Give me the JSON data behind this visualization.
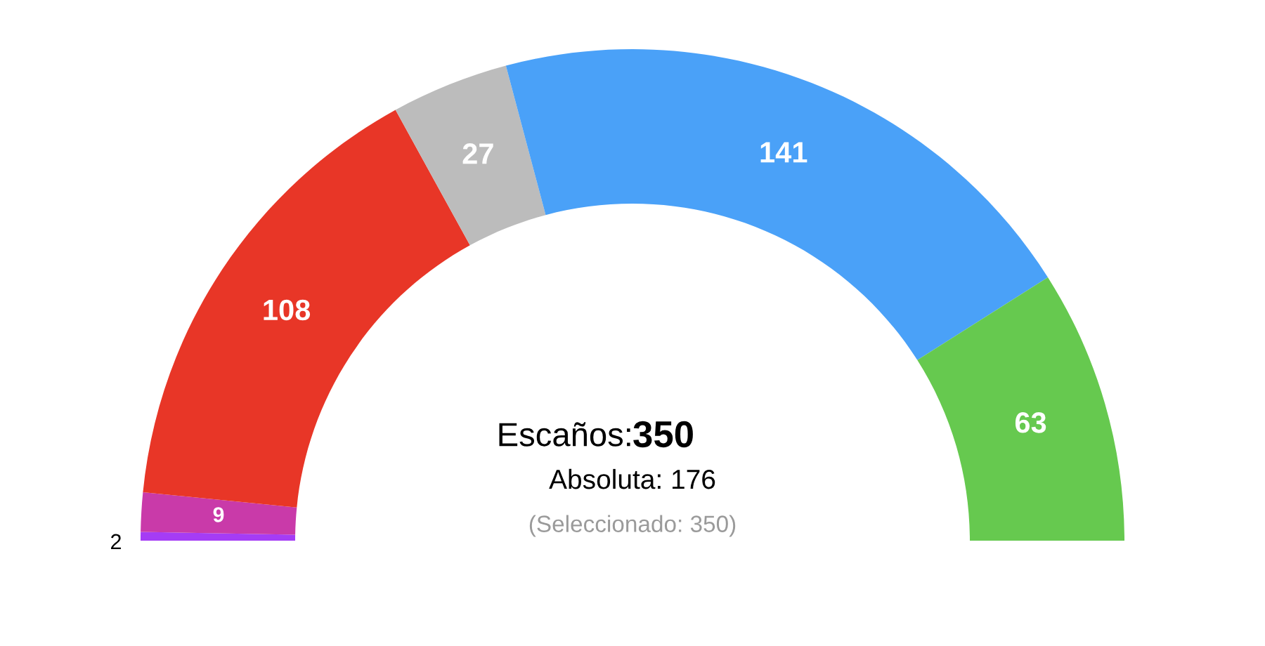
{
  "chart_data": {
    "type": "donut",
    "categories": [
      null,
      null,
      null,
      null,
      null,
      null
    ],
    "values": [
      2,
      9,
      108,
      27,
      141,
      63
    ],
    "colors": [
      "#a53cf5",
      "#c93aa9",
      "#e83627",
      "#bcbcbc",
      "#4aa1f8",
      "#66c94f"
    ],
    "data_labels": true,
    "annotations": [
      "Escaños: 350",
      "Absoluta: 176",
      "(Seleccionado: 350)"
    ]
  }
}
